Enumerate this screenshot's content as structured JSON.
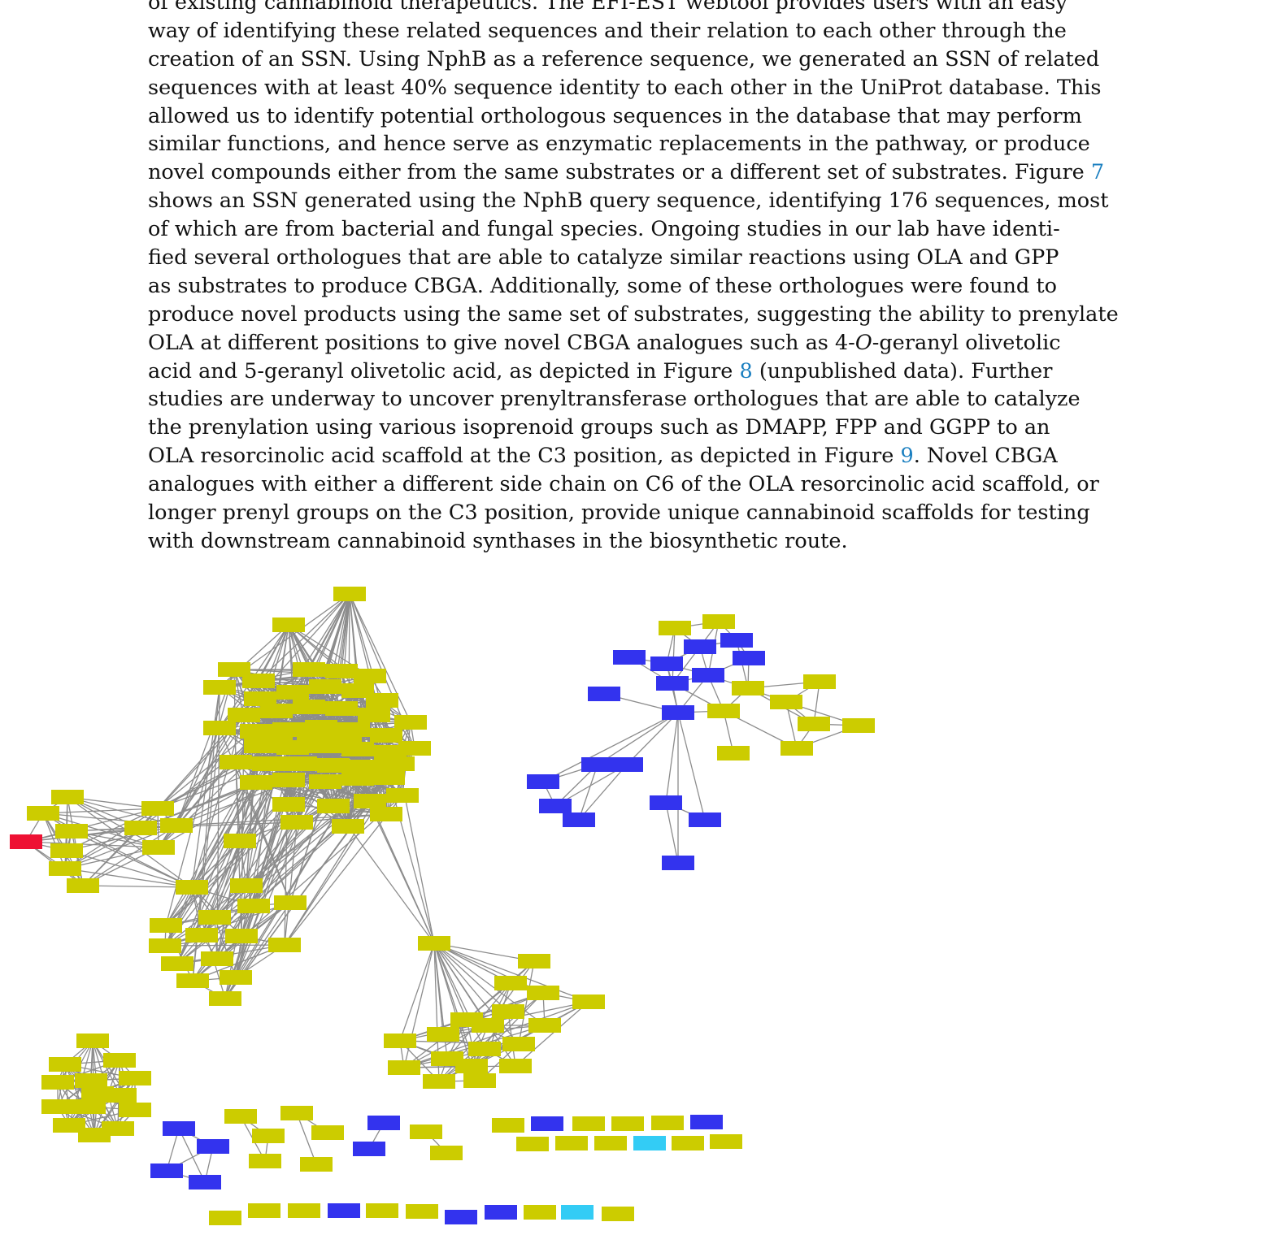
{
  "paragraph": {
    "lines": [
      "of existing cannabinoid therapeutics. The EFI-EST webtool provides users with an easy",
      "way of identifying these related sequences and their relation to each other through the",
      "creation of an SSN. Using NphB as a reference sequence, we generated an SSN of related",
      "sequences with at least 40% sequence identity to each other in the UniProt database. This",
      "allowed us to identify potential orthologous sequences in the database that may perform",
      "similar functions, and hence serve as enzymatic replacements in the pathway, or produce",
      "novel compounds either from the same substrates or a different set of substrates. Figure",
      "shows an SSN generated using the NphB query sequence, identifying 176 sequences, most",
      "of which are from bacterial and fungal species. Ongoing studies in our lab have identi-",
      "fied several orthologues that are able to catalyze similar reactions using OLA and GPP",
      "as substrates to produce CBGA. Additionally, some of these orthologues were found to",
      "produce novel products using the same set of substrates, suggesting the ability to prenylate",
      "OLA at different positions to give novel CBGA analogues such as 4-",
      "acid and 5-geranyl olivetolic acid, as depicted in Figure",
      "studies are underway to uncover prenyltransferase orthologues that are able to catalyze",
      "the prenylation using various isoprenoid groups such as DMAPP, FPP and GGPP to an",
      "OLA resorcinolic acid scaffold at the C3 position, as depicted in Figure",
      "analogues with either a different side chain on C6 of the OLA resorcinolic acid scaffold, or",
      "longer prenyl groups on the C3 position, provide unique cannabinoid scaffolds for testing",
      "with downstream cannabinoid synthases in the biosynthetic route."
    ],
    "fig7_ref": "7",
    "line13_italic": "O",
    "line13_tail": "-geranyl olivetolic",
    "fig8_ref": "8",
    "line14_tail": " (unpublished data). Further",
    "fig9_ref": "9",
    "line17_tail": ". Novel CBGA"
  },
  "network": {
    "node_colors": {
      "yellow": "#cccc00",
      "blue": "#3333ee",
      "red": "#ee1133",
      "cyan": "#33ccf5",
      "edge": "#8c8c8c"
    }
  }
}
